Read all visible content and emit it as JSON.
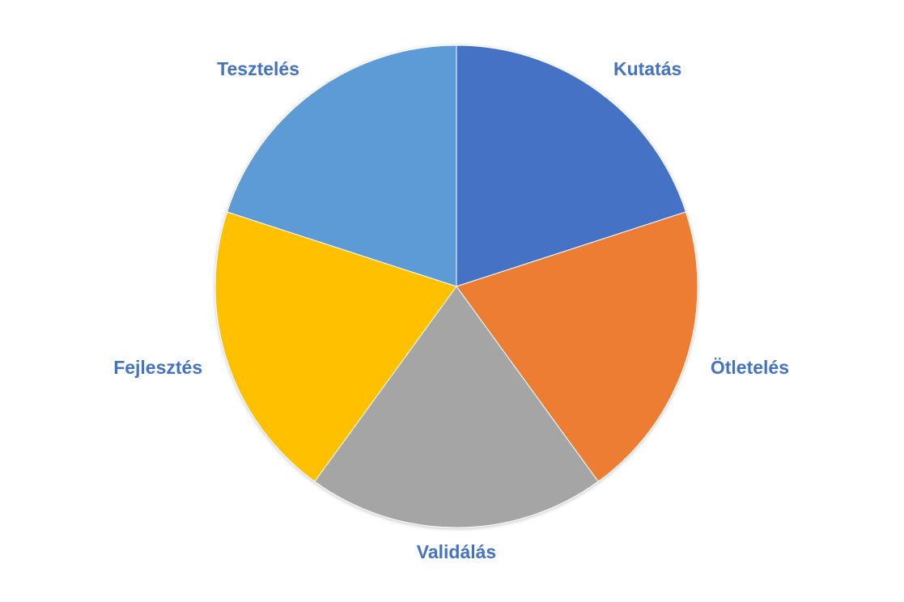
{
  "chart_data": {
    "type": "pie",
    "categories": [
      "Kutatás",
      "Ötletelés",
      "Validálás",
      "Fejlesztés",
      "Tesztelés"
    ],
    "values": [
      20,
      20,
      20,
      20,
      20
    ],
    "colors": [
      "#4472c4",
      "#ed7d31",
      "#a5a5a5",
      "#ffc000",
      "#5b9bd5"
    ],
    "label_color": "#4472c4"
  }
}
